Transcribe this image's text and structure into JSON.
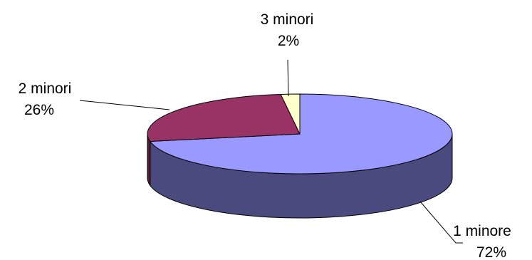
{
  "chart_data": {
    "type": "pie",
    "style": "3d",
    "slices": [
      {
        "label": "1 minore",
        "value": 72,
        "value_label": "72%",
        "color": "#9999ff",
        "side_color": "#4a4a7e"
      },
      {
        "label": "2 minori",
        "value": 26,
        "value_label": "26%",
        "color": "#993366",
        "side_color": "#5b1e3d"
      },
      {
        "label": "3 minori",
        "value": 2,
        "value_label": "2%",
        "color": "#ffffcc",
        "side_color": "#a6a686"
      }
    ],
    "outline_color": "#000000",
    "legend": "none"
  }
}
